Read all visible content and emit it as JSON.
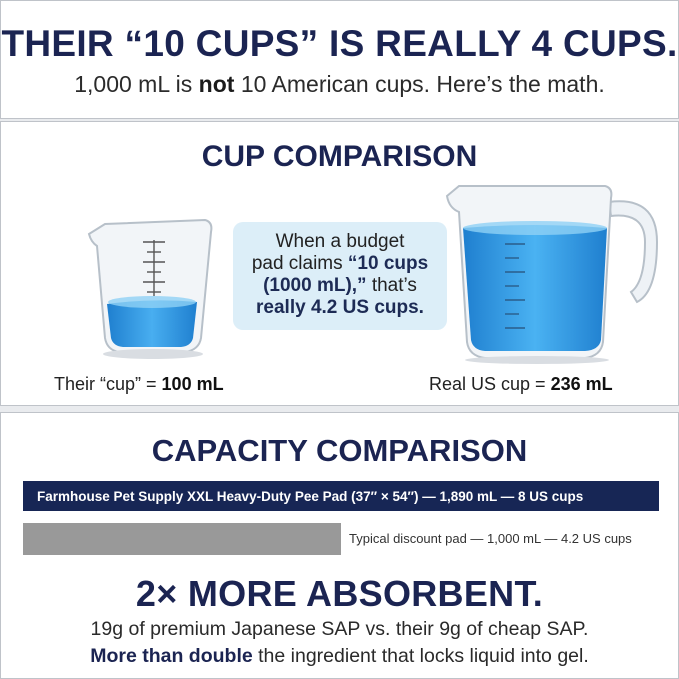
{
  "header": {
    "headline": "THEIR “10 CUPS” IS REALLY 4 CUPS.",
    "sub_pre": "1,000 mL is ",
    "sub_bold": "not",
    "sub_post": " 10 American cups. Here’s the math."
  },
  "cup_comparison": {
    "heading": "CUP COMPARISON",
    "callout_line1": "When a budget",
    "callout_line2": "pad claims",
    "callout_bold1": "“10 cups",
    "callout_bold2": "(1000 mL),”",
    "callout_line3": " that’s",
    "callout_bold3": "really 4.2 US cups.",
    "small_cup_label": "Their “cup” = ",
    "small_cup_value": "100 mL",
    "real_cup_label": "Real US cup = ",
    "real_cup_value": "236 mL"
  },
  "capacity_comparison": {
    "heading": "CAPACITY COMPARISON",
    "ours_label": "Farmhouse Pet Supply XXL Heavy-Duty Pee Pad (37″ × 54″) — 1,890 mL — 8 US cups",
    "theirs_label": "Typical discount pad — 1,000 mL — 4.2 US cups",
    "ours_ml": 1890,
    "theirs_ml": 1000
  },
  "absorbency": {
    "title": "2× MORE ABSORBENT.",
    "sap_line": "19g of premium Japanese SAP vs. their 9g of cheap SAP.",
    "double_bold": "More than double",
    "double_rest": " the ingredient that locks liquid into gel."
  },
  "colors": {
    "navy": "#1b2452",
    "bar_navy": "#172655",
    "bar_grey": "#999999",
    "callout_bg": "#dceef8",
    "water_blue": "#2f95e0"
  },
  "icons": {
    "small_cup": "measuring-cup-icon",
    "large_cup": "measuring-cup-with-handle-icon"
  }
}
